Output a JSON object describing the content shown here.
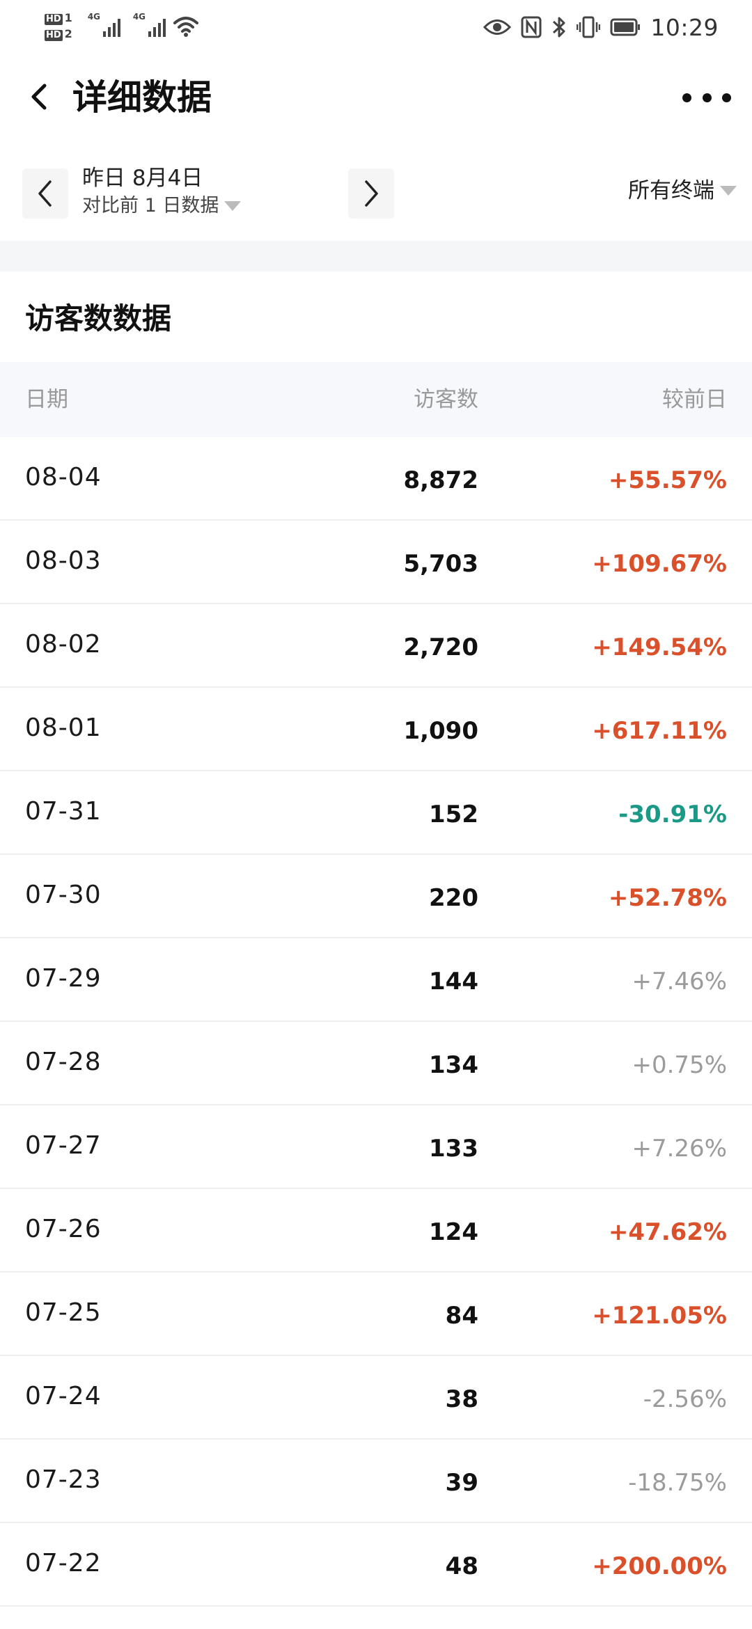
{
  "status_bar": {
    "sim1": "HD",
    "sim1_no": "1",
    "sim2": "HD",
    "sim2_no": "2",
    "network1": "4G",
    "network2": "4G",
    "time": "10:29"
  },
  "header": {
    "title": "详细数据"
  },
  "date_bar": {
    "date_main": "昨日 8月4日",
    "compare": "对比前 1 日数据",
    "terminal": "所有终端"
  },
  "section": {
    "title": "访客数数据"
  },
  "table": {
    "columns": [
      "日期",
      "访客数",
      "较前日"
    ],
    "rows": [
      {
        "date": "08-04",
        "visitors": "8,872",
        "change": "+55.57%",
        "trend": "up"
      },
      {
        "date": "08-03",
        "visitors": "5,703",
        "change": "+109.67%",
        "trend": "up"
      },
      {
        "date": "08-02",
        "visitors": "2,720",
        "change": "+149.54%",
        "trend": "up"
      },
      {
        "date": "08-01",
        "visitors": "1,090",
        "change": "+617.11%",
        "trend": "up"
      },
      {
        "date": "07-31",
        "visitors": "152",
        "change": "-30.91%",
        "trend": "down"
      },
      {
        "date": "07-30",
        "visitors": "220",
        "change": "+52.78%",
        "trend": "up"
      },
      {
        "date": "07-29",
        "visitors": "144",
        "change": "+7.46%",
        "trend": "flat"
      },
      {
        "date": "07-28",
        "visitors": "134",
        "change": "+0.75%",
        "trend": "flat"
      },
      {
        "date": "07-27",
        "visitors": "133",
        "change": "+7.26%",
        "trend": "flat"
      },
      {
        "date": "07-26",
        "visitors": "124",
        "change": "+47.62%",
        "trend": "up"
      },
      {
        "date": "07-25",
        "visitors": "84",
        "change": "+121.05%",
        "trend": "up"
      },
      {
        "date": "07-24",
        "visitors": "38",
        "change": "-2.56%",
        "trend": "flat"
      },
      {
        "date": "07-23",
        "visitors": "39",
        "change": "-18.75%",
        "trend": "flat"
      },
      {
        "date": "07-22",
        "visitors": "48",
        "change": "+200.00%",
        "trend": "up"
      }
    ]
  },
  "colors": {
    "up": "#d9502b",
    "down": "#1a9a86",
    "flat": "#9b9b9b",
    "header_bg": "#f6f8fb"
  },
  "icons": {
    "back": "chevron-left-icon",
    "more": "more-dots-icon",
    "prev": "chevron-left-icon",
    "next": "chevron-right-icon",
    "dropdown": "triangle-down-icon"
  }
}
